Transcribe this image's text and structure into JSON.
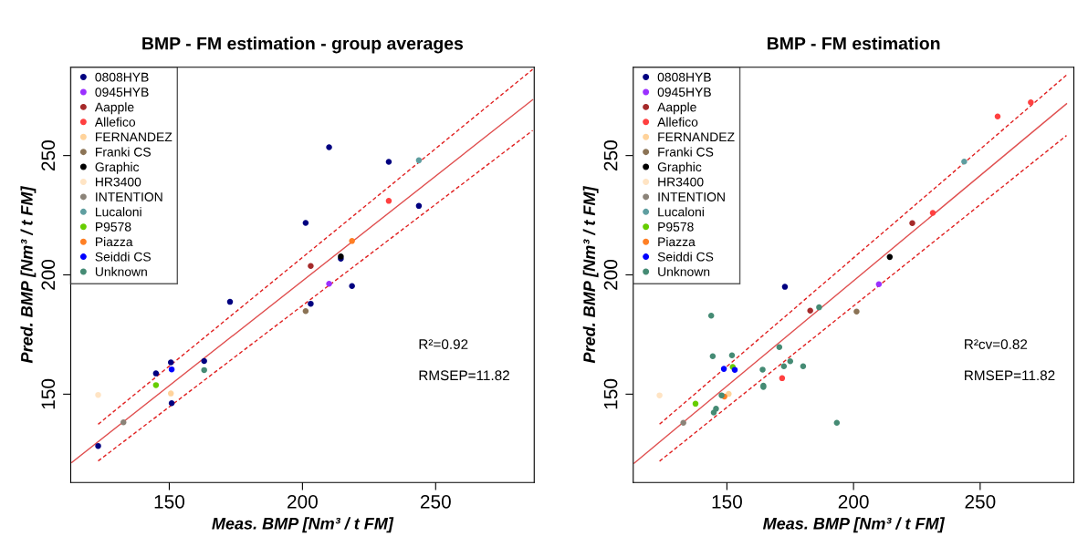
{
  "chart_data": [
    {
      "type": "scatter",
      "title": "BMP - FM estimation - group averages",
      "xlabel": "Meas. BMP [Nm³ / t FM]",
      "ylabel": "Pred. BMP [Nm³ / t FM]",
      "xlim": [
        113,
        287
      ],
      "ylim": [
        113,
        287
      ],
      "xticks": [
        150,
        200,
        250
      ],
      "yticks": [
        150,
        200,
        250
      ],
      "grid": false,
      "legend": "top left",
      "marker": "circle",
      "annotations": [
        "R²=0.92",
        "RMSEP=11.82"
      ],
      "series": [
        {
          "name": "0808HYB",
          "color": "#000080",
          "x": [
            210.0,
            232.4,
            243.7,
            201.2,
            214.4,
            218.6,
            203.1,
            172.8,
            163.1,
            150.6,
            145.0,
            150.9,
            123.3
          ],
          "values": [
            253.5,
            247.4,
            228.9,
            221.8,
            206.8,
            195.3,
            187.9,
            188.7,
            163.9,
            163.3,
            158.7,
            146.2,
            128.3
          ]
        },
        {
          "name": "0945HYB",
          "color": "#9b30ff",
          "x": [
            210.0
          ],
          "values": [
            196.3
          ]
        },
        {
          "name": "Aapple",
          "color": "#a52a2a",
          "x": [
            203.1
          ],
          "values": [
            203.7
          ]
        },
        {
          "name": "Allefico",
          "color": "#ff4040",
          "x": [
            232.4
          ],
          "values": [
            231.0
          ]
        },
        {
          "name": "FERNANDEZ",
          "color": "#ffd39b",
          "x": [
            150.6
          ],
          "values": [
            150.3
          ]
        },
        {
          "name": "Franki CS",
          "color": "#8b7355",
          "x": [
            201.2
          ],
          "values": [
            184.8
          ]
        },
        {
          "name": "Graphic",
          "color": "#000000",
          "x": [
            214.4
          ],
          "values": [
            207.7
          ]
        },
        {
          "name": "HR3400",
          "color": "#ffe4c4",
          "x": [
            123.3
          ],
          "values": [
            149.7
          ]
        },
        {
          "name": "INTENTION",
          "color": "#8b8378",
          "x": [
            132.8
          ],
          "values": [
            138.2
          ]
        },
        {
          "name": "Lucaloni",
          "color": "#5f9ea0",
          "x": [
            243.7
          ],
          "values": [
            248.0
          ]
        },
        {
          "name": "P9578",
          "color": "#66cd00",
          "x": [
            145.0
          ],
          "values": [
            153.8
          ]
        },
        {
          "name": "Piazza",
          "color": "#ff7f24",
          "x": [
            218.6
          ],
          "values": [
            214.2
          ]
        },
        {
          "name": "Seiddi CS",
          "color": "#0000ff",
          "x": [
            150.9
          ],
          "values": [
            160.4
          ]
        },
        {
          "name": "Unknown",
          "color": "#458b74",
          "x": [
            163.1
          ],
          "values": [
            160.1
          ]
        },
        {
          "type": "line",
          "marker": "none",
          "color": "#e05050",
          "line_style": "solid",
          "x": [
            113.4,
            286.4
          ],
          "values": [
            121.4,
            273.4
          ]
        },
        {
          "type": "line",
          "marker": "none",
          "color": "#e02020",
          "line_style": "dashed",
          "x": [
            123.3,
            286.4
          ],
          "values": [
            137.4,
            286.1
          ]
        },
        {
          "type": "line",
          "marker": "none",
          "color": "#e02020",
          "line_style": "dashed",
          "x": [
            123.3,
            286.4
          ],
          "values": [
            122.0,
            260.5
          ]
        }
      ]
    },
    {
      "type": "scatter",
      "title": "BMP - FM estimation",
      "xlabel": "Meas. BMP [Nm³ / t FM]",
      "ylabel": "Pred. BMP [Nm³ / t FM]",
      "xlim": [
        113,
        287
      ],
      "ylim": [
        113,
        287
      ],
      "xticks": [
        150,
        200,
        250
      ],
      "yticks": [
        150,
        200,
        250
      ],
      "grid": false,
      "legend": "top left",
      "marker": "circle",
      "annotations": [
        "R²cv=0.82",
        "RMSEP=11.82"
      ],
      "series": [
        {
          "name": "0808HYB",
          "color": "#000080",
          "x": [
            172.9
          ],
          "values": [
            195.0
          ]
        },
        {
          "name": "0945HYB",
          "color": "#9b30ff",
          "x": [
            210.0
          ],
          "values": [
            196.1
          ]
        },
        {
          "name": "Aapple",
          "color": "#a52a2a",
          "x": [
            223.2,
            182.9
          ],
          "values": [
            221.7,
            185.0
          ]
        },
        {
          "name": "Allefico",
          "color": "#ff4040",
          "x": [
            270.0,
            256.9,
            231.3,
            171.8
          ],
          "values": [
            272.3,
            266.4,
            226.0,
            156.7
          ]
        },
        {
          "name": "FERNANDEZ",
          "color": "#ffd39b",
          "x": [
            150.7
          ],
          "values": [
            150.1
          ]
        },
        {
          "name": "Franki CS",
          "color": "#8b7355",
          "x": [
            201.2
          ],
          "values": [
            184.6
          ]
        },
        {
          "name": "Graphic",
          "color": "#000000",
          "x": [
            214.3
          ],
          "values": [
            207.5
          ]
        },
        {
          "name": "HR3400",
          "color": "#ffe4c4",
          "x": [
            123.4
          ],
          "values": [
            149.5
          ]
        },
        {
          "name": "INTENTION",
          "color": "#8b8378",
          "x": [
            132.8
          ],
          "values": [
            138.0
          ]
        },
        {
          "name": "Lucaloni",
          "color": "#5f9ea0",
          "x": [
            243.7
          ],
          "values": [
            247.5
          ]
        },
        {
          "name": "P9578",
          "color": "#66cd00",
          "x": [
            137.6,
            152.3
          ],
          "values": [
            146.0,
            161.4
          ]
        },
        {
          "name": "Piazza",
          "color": "#ff7f24",
          "x": [
            149.0
          ],
          "values": [
            149.0
          ]
        },
        {
          "name": "Seiddi CS",
          "color": "#0000ff",
          "x": [
            148.8,
            153.1
          ],
          "values": [
            160.6,
            160.2
          ]
        },
        {
          "name": "Unknown",
          "color": "#458b74",
          "x": [
            143.8,
            144.4,
            152.0,
            170.7,
            186.4,
            175.0,
            172.5,
            180.1,
            164.1,
            164.4,
            164.4,
            147.9,
            145.7,
            144.8,
            193.4
          ],
          "values": [
            182.9,
            165.9,
            166.3,
            169.7,
            186.4,
            163.8,
            161.7,
            161.7,
            160.3,
            153.6,
            153.0,
            149.5,
            143.9,
            142.3,
            138.0
          ]
        },
        {
          "type": "line",
          "marker": "none",
          "color": "#e05050",
          "line_style": "solid",
          "x": [
            113.4,
            284.1
          ],
          "values": [
            121.1,
            271.7
          ]
        },
        {
          "type": "line",
          "marker": "none",
          "color": "#e02020",
          "line_style": "dashed",
          "x": [
            123.4,
            284.1
          ],
          "values": [
            137.4,
            283.7
          ]
        },
        {
          "type": "line",
          "marker": "none",
          "color": "#e02020",
          "line_style": "dashed",
          "x": [
            123.4,
            284.1
          ],
          "values": [
            121.9,
            258.4
          ]
        }
      ]
    }
  ]
}
